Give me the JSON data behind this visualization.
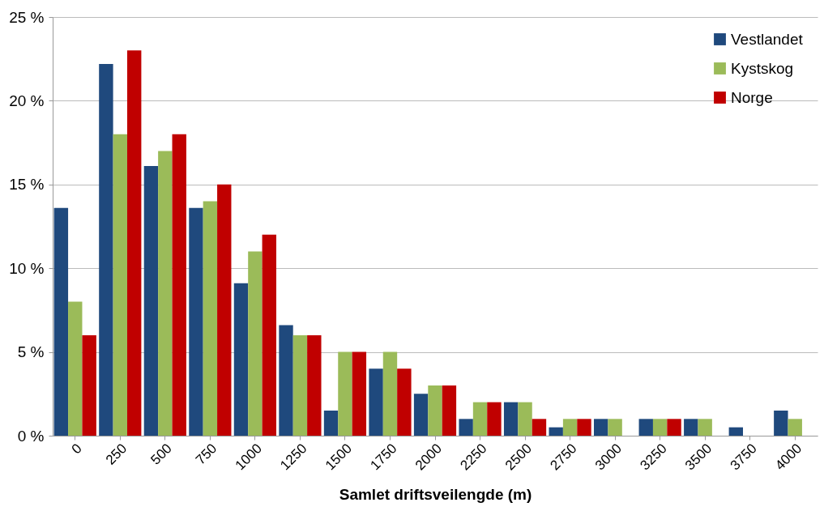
{
  "chart_data": {
    "type": "bar",
    "xlabel": "Samlet driftsveilengde (m)",
    "categories": [
      "0",
      "250",
      "500",
      "750",
      "1000",
      "1250",
      "1500",
      "1750",
      "2000",
      "2250",
      "2500",
      "2750",
      "3000",
      "3250",
      "3500",
      "3750",
      "4000"
    ],
    "series": [
      {
        "name": "Vestlandet",
        "color": "#1f497d",
        "values": [
          13.6,
          22.2,
          16.1,
          13.6,
          9.1,
          6.6,
          1.5,
          4,
          2.5,
          1,
          2,
          0.5,
          1,
          1,
          1,
          0.5,
          1.5
        ]
      },
      {
        "name": "Kystskog",
        "color": "#9bbb59",
        "values": [
          8,
          18,
          17,
          14,
          11,
          6,
          5,
          5,
          3,
          2,
          2,
          1,
          1,
          1,
          1,
          0,
          1
        ]
      },
      {
        "name": "Norge",
        "color": "#c00000",
        "values": [
          6,
          23,
          18,
          15,
          12,
          6,
          5,
          4,
          3,
          2,
          1,
          1,
          0,
          1,
          0,
          0,
          0
        ]
      }
    ],
    "ylim": [
      0,
      25
    ],
    "yticks": [
      {
        "value": 0,
        "label": "0 %"
      },
      {
        "value": 5,
        "label": "5 %"
      },
      {
        "value": 10,
        "label": "10 %"
      },
      {
        "value": 15,
        "label": "15 %"
      },
      {
        "value": 20,
        "label": "20 %"
      },
      {
        "value": 25,
        "label": "25 %"
      }
    ],
    "grid": "y",
    "legend": "top right"
  }
}
